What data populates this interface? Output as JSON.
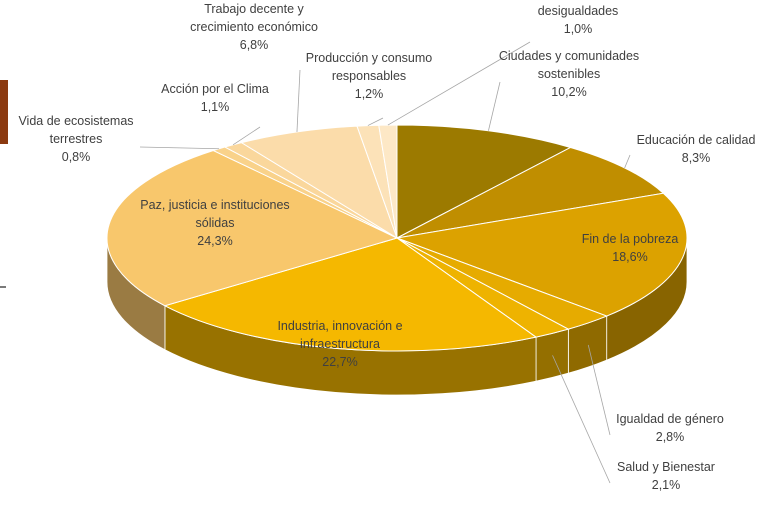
{
  "chart_data": {
    "type": "pie",
    "style": "3d",
    "slices": [
      {
        "label": "Ciudades y comunidades sostenibles",
        "lines": [
          "Ciudades y comunidades",
          "sostenibles"
        ],
        "value": 10.2,
        "value_label": "10,2%",
        "color": "#9c7a00"
      },
      {
        "label": "Educación de calidad",
        "lines": [
          "Educación de calidad"
        ],
        "value": 8.3,
        "value_label": "8,3%",
        "color": "#c08e00"
      },
      {
        "label": "Fin de la pobreza",
        "lines": [
          "Fin de la pobreza"
        ],
        "value": 18.6,
        "value_label": "18,6%",
        "color": "#dca200"
      },
      {
        "label": "Igualdad de género",
        "lines": [
          "Igualdad de género"
        ],
        "value": 2.8,
        "value_label": "2,8%",
        "color": "#e6ab00"
      },
      {
        "label": "Salud y Bienestar",
        "lines": [
          "Salud y Bienestar"
        ],
        "value": 2.1,
        "value_label": "2,1%",
        "color": "#eeb300"
      },
      {
        "label": "Industria, innovación e infraestructura",
        "lines": [
          "Industria, innovación e",
          "infraestructura"
        ],
        "value": 22.7,
        "value_label": "22,7%",
        "color": "#f5b800"
      },
      {
        "label": "Paz, justicia e instituciones sólidas",
        "lines": [
          "Paz, justicia e instituciones",
          "sólidas"
        ],
        "value": 24.3,
        "value_label": "24,3%",
        "color": "#f8c76c"
      },
      {
        "label": "Vida de ecosistemas terrestres",
        "lines": [
          "Vida de ecosistemas",
          "terrestres"
        ],
        "value": 0.8,
        "value_label": "0,8%",
        "color": "#f9d28a"
      },
      {
        "label": "Acción por el Clima",
        "lines": [
          "Acción por el Clima"
        ],
        "value": 1.1,
        "value_label": "1,1%",
        "color": "#fad79c"
      },
      {
        "label": "Trabajo decente y crecimiento económico",
        "lines": [
          "Trabajo decente y",
          "crecimiento económico"
        ],
        "value": 6.8,
        "value_label": "6,8%",
        "color": "#fbdcaa"
      },
      {
        "label": "Producción y consumo responsables",
        "lines": [
          "Producción y consumo",
          "responsables"
        ],
        "value": 1.2,
        "value_label": "1,2%",
        "color": "#fce2b8"
      },
      {
        "label": "Reducción de las desigualdades",
        "lines": [
          "Reducción de las",
          "desigualdades"
        ],
        "value": 1.0,
        "value_label": "1,0%",
        "color": "#fde8c6"
      }
    ]
  }
}
